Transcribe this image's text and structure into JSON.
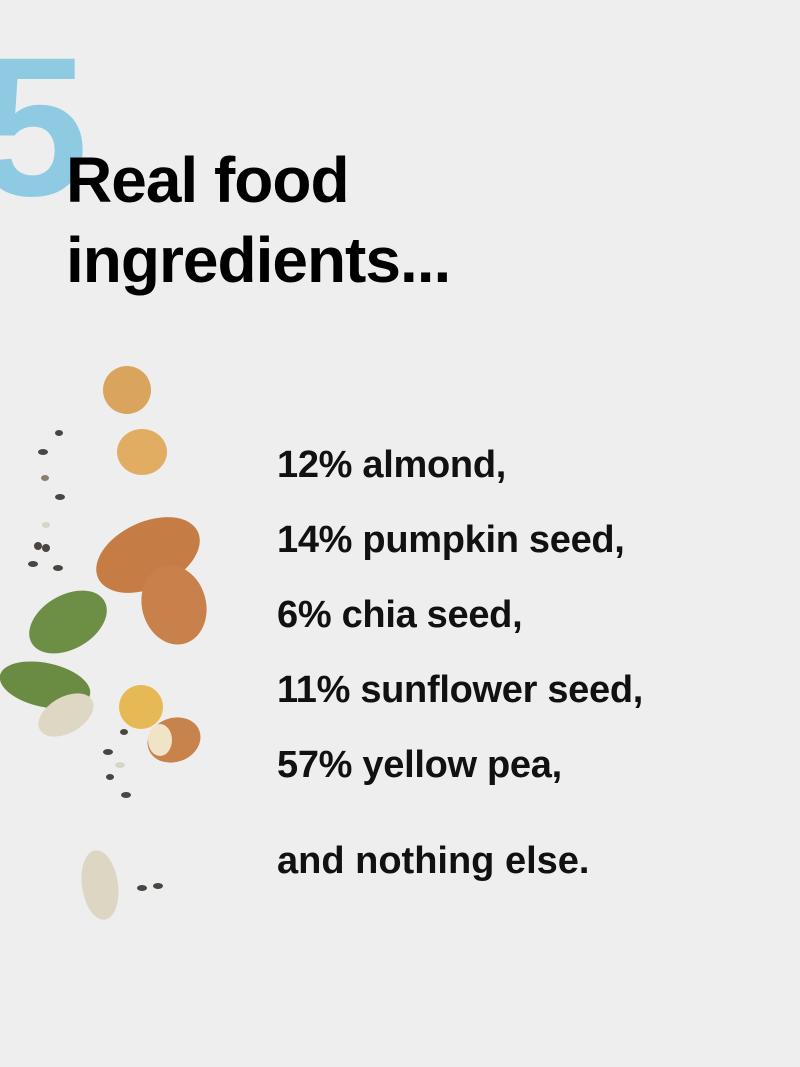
{
  "badge": {
    "number": "5",
    "color": "#8ecbe3"
  },
  "heading": {
    "line1": "Real food",
    "line2": "ingredients..."
  },
  "ingredients": [
    {
      "text": "12% almond,"
    },
    {
      "text": "14% pumpkin seed,"
    },
    {
      "text": "6% chia seed,"
    },
    {
      "text": "11% sunflower seed,"
    },
    {
      "text": "57% yellow pea,"
    }
  ],
  "closing": "and nothing else.",
  "illustration": {
    "items": [
      "yellow-pea",
      "almond",
      "pumpkin-seed",
      "chia-seed",
      "sunflower-seed"
    ]
  }
}
